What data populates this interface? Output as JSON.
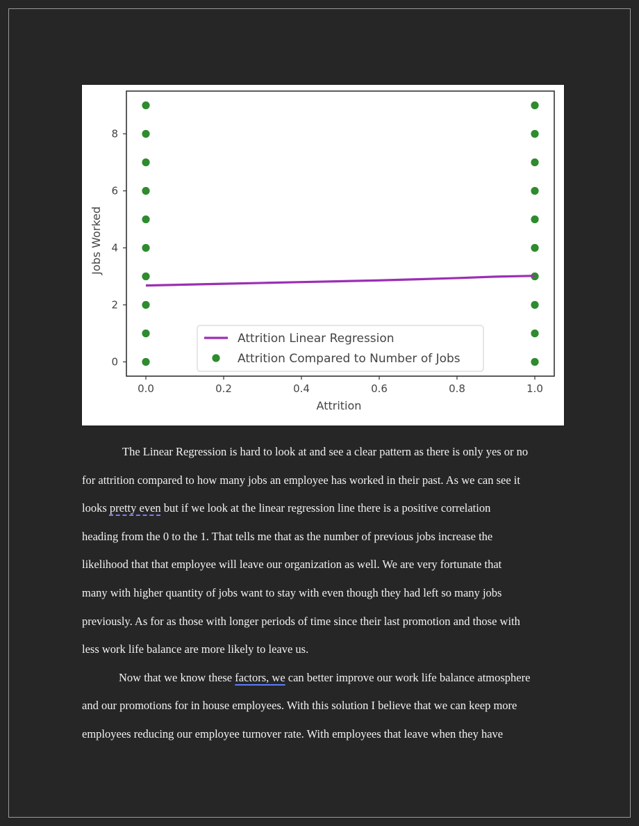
{
  "chart_data": {
    "type": "scatter",
    "xlabel": "Attrition",
    "ylabel": "Jobs Worked",
    "xlim": [
      -0.05,
      1.05
    ],
    "ylim": [
      -0.5,
      9.5
    ],
    "xticks": [
      "0.0",
      "0.2",
      "0.4",
      "0.6",
      "0.8",
      "1.0"
    ],
    "xtick_values": [
      0,
      0.2,
      0.4,
      0.6,
      0.8,
      1.0
    ],
    "yticks": [
      "0",
      "2",
      "4",
      "6",
      "8"
    ],
    "ytick_values": [
      0,
      2,
      4,
      6,
      8
    ],
    "legend_position": "lower center",
    "grid": false,
    "series": [
      {
        "name": "Attrition Linear Regression",
        "kind": "line",
        "color": "#9b2fb5",
        "x": [
          0,
          0.1,
          0.2,
          0.3,
          0.4,
          0.5,
          0.6,
          0.7,
          0.8,
          0.9,
          1.0
        ],
        "y": [
          2.68,
          2.71,
          2.74,
          2.77,
          2.8,
          2.83,
          2.86,
          2.9,
          2.94,
          2.99,
          3.02
        ]
      },
      {
        "name": "Attrition Compared to Number of Jobs",
        "kind": "scatter",
        "color": "#2e8b2e",
        "x": [
          0,
          0,
          0,
          0,
          0,
          0,
          0,
          0,
          0,
          0,
          1,
          1,
          1,
          1,
          1,
          1,
          1,
          1,
          1,
          1
        ],
        "y": [
          0,
          1,
          2,
          3,
          4,
          5,
          6,
          7,
          8,
          9,
          0,
          1,
          2,
          3,
          4,
          5,
          6,
          7,
          8,
          9
        ]
      }
    ]
  },
  "body": {
    "lines": [
      "The Linear Regression is hard to look at and see a clear pattern as there is only yes or no",
      "for attrition compared to how many jobs an employee has worked in their past. As we can see it",
      {
        "before": "looks ",
        "mark": "pretty even",
        "after": " but if we look at the linear regression line there is a positive correlation"
      },
      "heading from the 0 to the 1. That tells me that as the number of previous jobs increase the",
      "likelihood that that employee will leave our organization as well. We are very fortunate that",
      "many with higher quantity of jobs want to stay with even though they had left so many jobs",
      "previously. As for as those with longer periods of time since their last promotion and those with",
      "less work life balance are more likely to leave us.",
      {
        "before": "Now that we know these ",
        "mark": "factors, we",
        "after": " can better improve our work life balance atmosphere"
      },
      "and our promotions for in house employees. With this solution I believe that we can keep more",
      "employees reducing our employee turnover rate. With employees that leave when they have"
    ]
  }
}
